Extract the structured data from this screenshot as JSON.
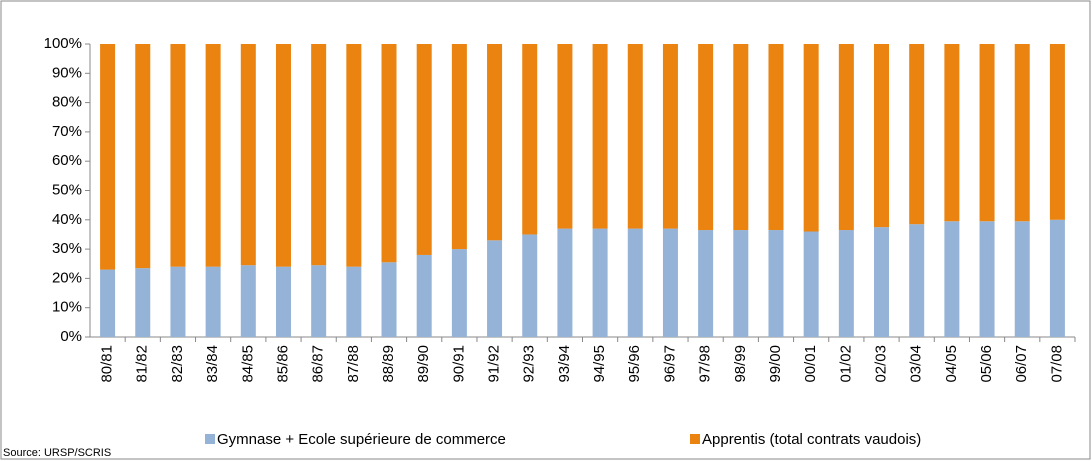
{
  "chart_data": {
    "type": "stacked_bar",
    "categories": [
      "80/81",
      "81/82",
      "82/83",
      "83/84",
      "84/85",
      "85/86",
      "86/87",
      "87/88",
      "88/89",
      "89/90",
      "90/91",
      "91/92",
      "92/93",
      "93/94",
      "94/95",
      "95/96",
      "96/97",
      "97/98",
      "98/99",
      "99/00",
      "00/01",
      "01/02",
      "02/03",
      "03/04",
      "04/05",
      "05/06",
      "06/07",
      "07/08"
    ],
    "series": [
      {
        "name": "Gymnase + Ecole supérieure de commerce",
        "color": "#95b3d7",
        "values": [
          23,
          23.5,
          24,
          24,
          24.5,
          24,
          24.5,
          24,
          25.5,
          28,
          30,
          33,
          35,
          37,
          37,
          37,
          37,
          36.5,
          36.5,
          36.5,
          36,
          36.5,
          37.5,
          38.5,
          39.5,
          39.5,
          39.5,
          40
        ]
      },
      {
        "name": "Apprentis (total contrats vaudois)",
        "color": "#ea830f",
        "values": [
          77,
          76.5,
          76,
          76,
          75.5,
          76,
          75.5,
          76,
          74.5,
          72,
          70,
          67,
          65,
          63,
          63,
          63,
          63,
          63.5,
          63.5,
          63.5,
          64,
          63.5,
          62.5,
          61.5,
          60.5,
          60.5,
          60.5,
          60
        ]
      }
    ],
    "ylim": [
      0,
      100
    ],
    "yticks": [
      {
        "value": 0,
        "label": "0%"
      },
      {
        "value": 10,
        "label": "10%"
      },
      {
        "value": 20,
        "label": "20%"
      },
      {
        "value": 30,
        "label": "30%"
      },
      {
        "value": 40,
        "label": "40%"
      },
      {
        "value": 50,
        "label": "50%"
      },
      {
        "value": 60,
        "label": "60%"
      },
      {
        "value": 70,
        "label": "70%"
      },
      {
        "value": 80,
        "label": "80%"
      },
      {
        "value": 90,
        "label": "90%"
      },
      {
        "value": 100,
        "label": "100%"
      }
    ],
    "legend": "bottom",
    "source": "Source: URSP/SCRIS"
  }
}
